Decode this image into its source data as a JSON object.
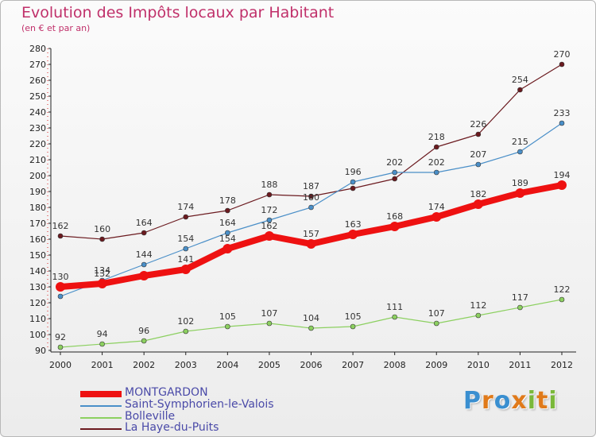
{
  "chart_data": {
    "type": "line",
    "title": "Evolution des Impôts locaux par Habitant",
    "subtitle": "(en € et par an)",
    "xlabel": "",
    "ylabel": "",
    "x": [
      2000,
      2001,
      2002,
      2003,
      2004,
      2005,
      2006,
      2007,
      2008,
      2009,
      2010,
      2011,
      2012
    ],
    "ylim": [
      90,
      280
    ],
    "yticks": [
      90,
      100,
      110,
      120,
      130,
      140,
      150,
      160,
      170,
      180,
      190,
      200,
      210,
      220,
      230,
      240,
      250,
      260,
      270,
      280
    ],
    "grid": false,
    "legend_position": "bottom-left",
    "series": [
      {
        "name": "La Haye-du-Puits",
        "color": "#6b1a1f",
        "emphasis": false,
        "values": [
          162,
          160,
          164,
          174,
          178,
          188,
          187,
          192,
          198,
          218,
          226,
          254,
          270
        ],
        "labels": [
          "162",
          "160",
          "164",
          "174",
          "178",
          "188",
          "187",
          "",
          "",
          "218",
          "226",
          "254",
          "270"
        ]
      },
      {
        "name": "Saint-Symphorien-le-Valois",
        "color": "#4a8fc8",
        "emphasis": false,
        "values": [
          124,
          134,
          144,
          154,
          164,
          172,
          180,
          196,
          202,
          202,
          207,
          215,
          233
        ],
        "labels": [
          "",
          "134",
          "144",
          "154",
          "164",
          "172",
          "180",
          "196",
          "202",
          "202",
          "207",
          "215",
          "233"
        ]
      },
      {
        "name": "Bolleville",
        "color": "#8cd060",
        "emphasis": false,
        "values": [
          92,
          94,
          96,
          102,
          105,
          107,
          104,
          105,
          111,
          107,
          112,
          117,
          122
        ],
        "labels": [
          "92",
          "94",
          "96",
          "102",
          "105",
          "107",
          "104",
          "105",
          "111",
          "107",
          "112",
          "117",
          "122"
        ]
      },
      {
        "name": "MONTGARDON",
        "color": "#ee1111",
        "emphasis": true,
        "values": [
          130,
          132,
          137,
          141,
          154,
          162,
          157,
          163,
          168,
          174,
          182,
          189,
          194
        ],
        "labels": [
          "130",
          "132",
          "",
          "141",
          "154",
          "162",
          "157",
          "163",
          "168",
          "174",
          "182",
          "189",
          "194"
        ]
      }
    ]
  },
  "legend": {
    "items": [
      {
        "label": "MONTGARDON",
        "color": "#ee1111"
      },
      {
        "label": "Saint-Symphorien-le-Valois",
        "color": "#4a8fc8"
      },
      {
        "label": "Bolleville",
        "color": "#8cd060"
      },
      {
        "label": "La Haye-du-Puits",
        "color": "#6b1a1f"
      }
    ]
  },
  "logo": {
    "letters": [
      "P",
      "r",
      "o",
      "x",
      "i",
      "t",
      "i"
    ]
  }
}
